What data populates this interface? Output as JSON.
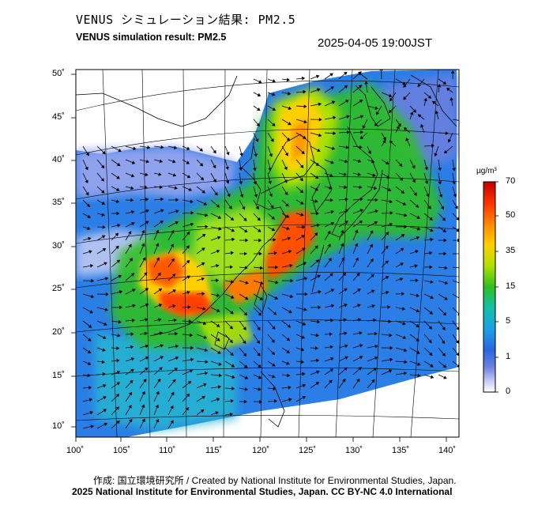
{
  "header": {
    "title_jp": "VENUS シミュレーション結果: PM2.5",
    "title_en": "VENUS simulation result: PM2.5",
    "timestamp": "2025-04-05 19:00JST"
  },
  "map": {
    "lat_labels": [
      "50˚",
      "45˚",
      "40˚",
      "35˚",
      "30˚",
      "25˚",
      "20˚",
      "15˚",
      "10˚"
    ],
    "lon_labels": [
      "100˚",
      "105˚",
      "110˚",
      "115˚",
      "120˚",
      "125˚",
      "130˚",
      "135˚",
      "140˚"
    ],
    "lat_range": [
      9,
      50
    ],
    "lon_range": [
      100,
      141
    ],
    "variable": "PM2.5",
    "wind_vectors_shown": true
  },
  "colorbar": {
    "unit": "µg/m³",
    "labels": [
      "70",
      "50",
      "35",
      "15",
      "5",
      "1",
      "0"
    ],
    "colors": [
      "#c00000",
      "#ff3000",
      "#ff9900",
      "#ffd000",
      "#aee000",
      "#2fc020",
      "#12c0a8",
      "#1ea0e6",
      "#2866e0",
      "#6b80e0",
      "#c8cdf4",
      "#ffffff"
    ]
  },
  "footer": {
    "credit": "作成: 国立環境研究所 / Created by National Institute for Environmental Studies, Japan.",
    "license": "2025 National Institute for Environmental Studies, Japan. CC BY-NC 4.0 International"
  }
}
